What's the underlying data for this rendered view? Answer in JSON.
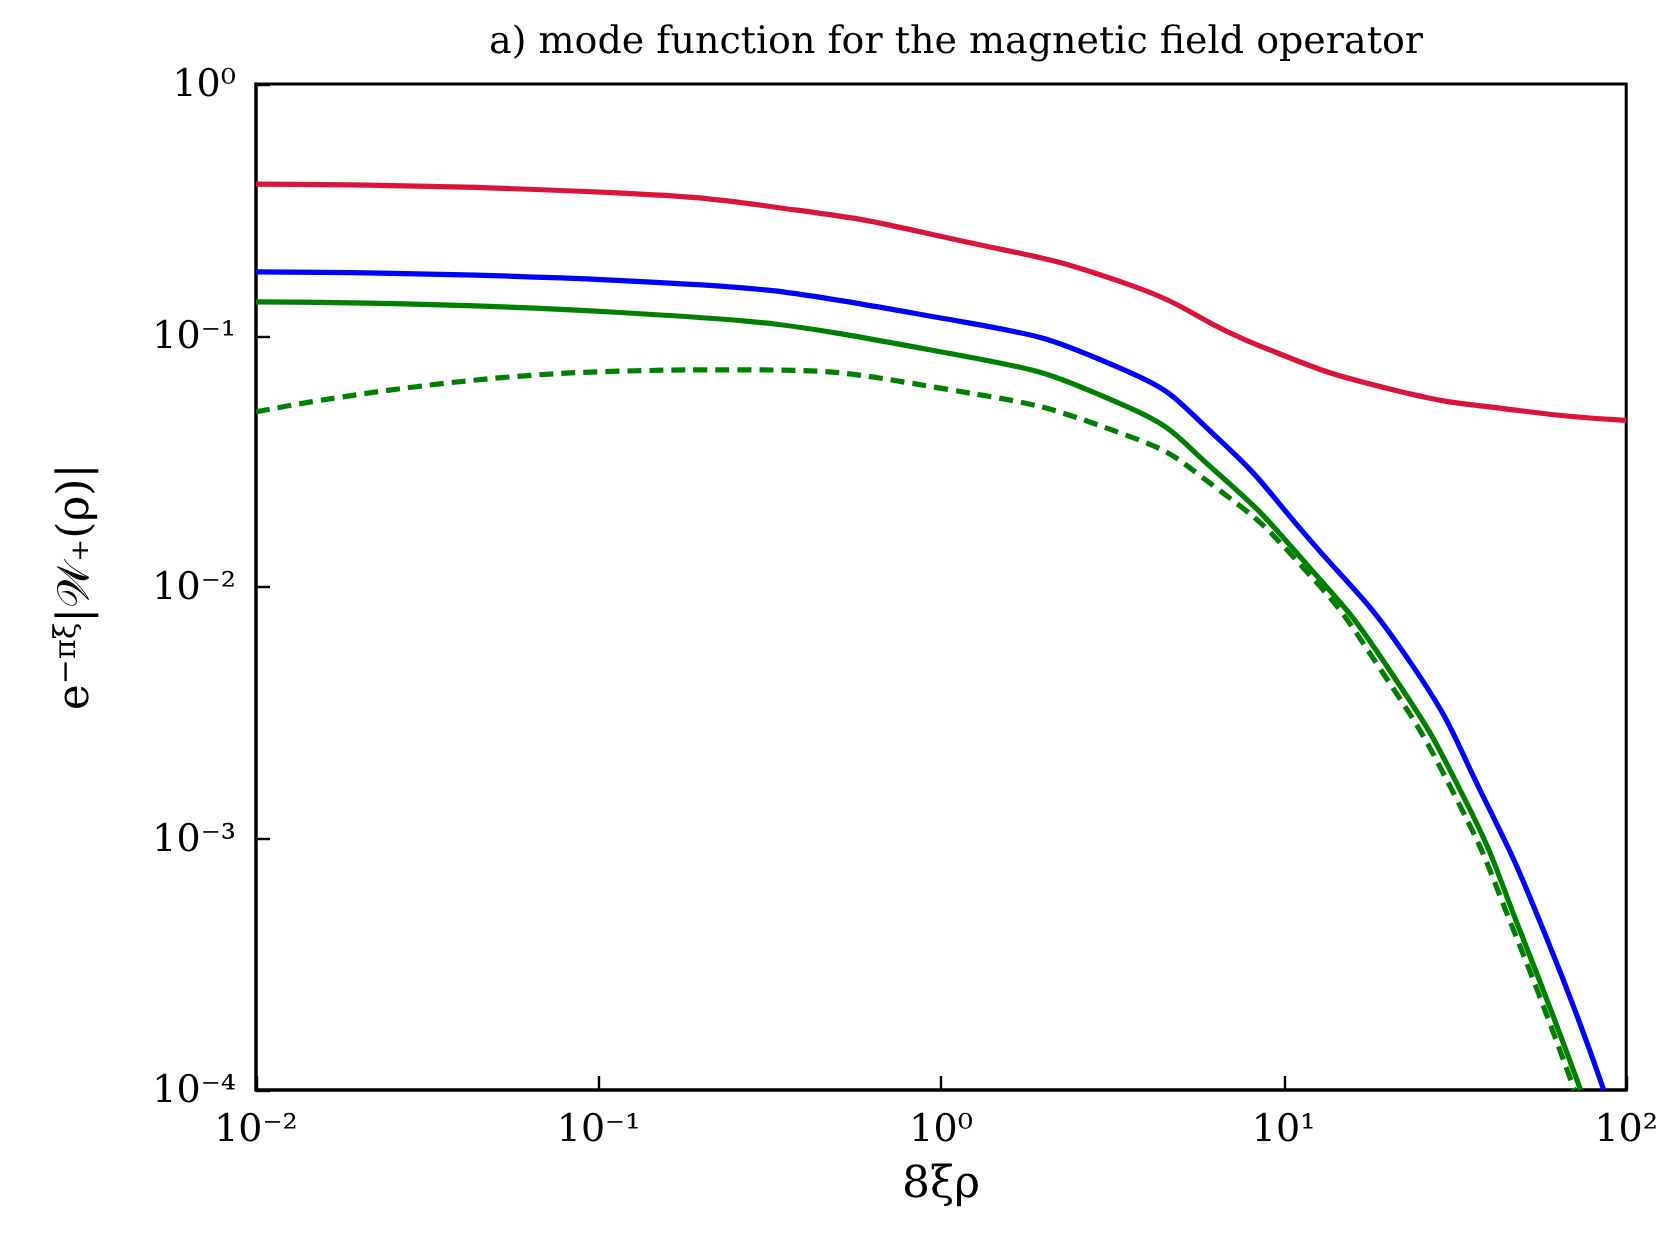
{
  "chart_data": {
    "type": "line",
    "title": "a) mode function for the magnetic field operator",
    "xlabel": "8ξρ",
    "ylabel": "e$^{−πξ}$|𝒲₊(ρ)|",
    "log": "xy",
    "grid": false,
    "marker": "none",
    "xlim": [
      0.01,
      100
    ],
    "ylim": [
      0.0001,
      1
    ],
    "xticks": [
      {
        "value": 0.01,
        "label": "10⁻²"
      },
      {
        "value": 0.1,
        "label": "10⁻¹"
      },
      {
        "value": 1,
        "label": "10⁰"
      },
      {
        "value": 10,
        "label": "10¹"
      },
      {
        "value": 100,
        "label": "10²"
      }
    ],
    "yticks": [
      {
        "value": 0.0001,
        "label": "10⁻⁴"
      },
      {
        "value": 0.001,
        "label": "10⁻³"
      },
      {
        "value": 0.01,
        "label": "10⁻²"
      },
      {
        "value": 0.1,
        "label": "10⁻¹"
      },
      {
        "value": 1,
        "label": "10⁰"
      }
    ],
    "series": [
      {
        "color": "#dc143c",
        "line_style": "solid",
        "x": [
          0.01,
          0.109,
          0.38,
          1.05,
          3.5,
          8.5,
          20.7,
          50.6,
          100
        ],
        "values": [
          0.4,
          0.37,
          0.315,
          0.244,
          0.16,
          0.091,
          0.061,
          0.05,
          0.046
        ]
      },
      {
        "color": "#0000ff",
        "line_style": "solid",
        "x": [
          0.01,
          0.109,
          1.05,
          3.5,
          6.3,
          11.5,
          23.7,
          38.7,
          57.8,
          86
        ],
        "values": [
          0.179,
          0.166,
          0.116,
          0.072,
          0.04,
          0.0163,
          0.0049,
          0.00142,
          0.00042,
          0.0001
        ]
      },
      {
        "color": "#008000",
        "line_style": "solid",
        "x": [
          0.01,
          0.109,
          1.05,
          3.5,
          6.3,
          11.8,
          19.9,
          33.9,
          49.3,
          73.6
        ],
        "values": [
          0.136,
          0.124,
          0.085,
          0.052,
          0.029,
          0.0121,
          0.0049,
          0.00142,
          0.00042,
          0.0001
        ]
      },
      {
        "color": "#008000",
        "line_style": "dashed",
        "x": [
          0.01,
          0.109,
          0.25,
          1.05,
          3.5,
          6.3,
          11.3,
          18.8,
          32.1,
          47.3,
          70.6
        ],
        "values": [
          0.0497,
          0.072,
          0.073,
          0.061,
          0.04,
          0.025,
          0.0121,
          0.0049,
          0.00142,
          0.00042,
          0.0001
        ]
      }
    ]
  }
}
